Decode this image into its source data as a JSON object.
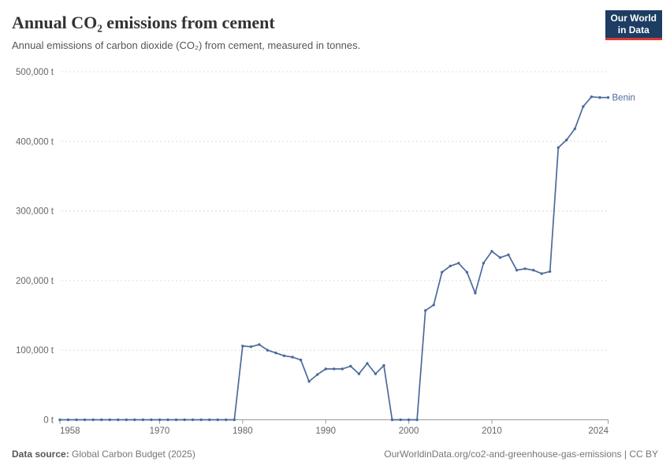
{
  "header": {
    "title": "Annual CO₂ emissions from cement",
    "subtitle": "Annual emissions of carbon dioxide (CO₂) from cement, measured in tonnes."
  },
  "logo": {
    "line1": "Our World",
    "line2": "in Data",
    "bg_color": "#1d3d63",
    "accent_color": "#dc3a34"
  },
  "chart_data": {
    "type": "line",
    "title": "Annual CO₂ emissions from cement",
    "subtitle": "Annual emissions of carbon dioxide (CO₂) from cement, measured in tonnes.",
    "unit": "t",
    "xlabel": "",
    "ylabel": "",
    "grid": true,
    "legend_position": "end-of-line",
    "xlim": [
      1958,
      2024
    ],
    "ylim": [
      0,
      500000
    ],
    "x_ticks": [
      {
        "value": 1958,
        "label": "1958"
      },
      {
        "value": 1970,
        "label": "1970"
      },
      {
        "value": 1980,
        "label": "1980"
      },
      {
        "value": 1990,
        "label": "1990"
      },
      {
        "value": 2000,
        "label": "2000"
      },
      {
        "value": 2010,
        "label": "2010"
      },
      {
        "value": 2024,
        "label": "2024"
      }
    ],
    "y_ticks": [
      {
        "value": 0,
        "label": "0 t"
      },
      {
        "value": 100000,
        "label": "100,000 t"
      },
      {
        "value": 200000,
        "label": "200,000 t"
      },
      {
        "value": 300000,
        "label": "300,000 t"
      },
      {
        "value": 400000,
        "label": "400,000 t"
      },
      {
        "value": 500000,
        "label": "500,000 t"
      }
    ],
    "x": [
      1958,
      1959,
      1960,
      1961,
      1962,
      1963,
      1964,
      1965,
      1966,
      1967,
      1968,
      1969,
      1970,
      1971,
      1972,
      1973,
      1974,
      1975,
      1976,
      1977,
      1978,
      1979,
      1980,
      1981,
      1982,
      1983,
      1984,
      1985,
      1986,
      1987,
      1988,
      1989,
      1990,
      1991,
      1992,
      1993,
      1994,
      1995,
      1996,
      1997,
      1998,
      1999,
      2000,
      2001,
      2002,
      2003,
      2004,
      2005,
      2006,
      2007,
      2008,
      2009,
      2010,
      2011,
      2012,
      2013,
      2014,
      2015,
      2016,
      2017,
      2018,
      2019,
      2020,
      2021,
      2022,
      2023,
      2024
    ],
    "series": [
      {
        "name": "Benin",
        "color": "#4C6A9C",
        "values": [
          0,
          0,
          0,
          0,
          0,
          0,
          0,
          0,
          0,
          0,
          0,
          0,
          0,
          0,
          0,
          0,
          0,
          0,
          0,
          0,
          0,
          0,
          106000,
          105000,
          108000,
          100000,
          96000,
          92000,
          90000,
          86000,
          55000,
          65000,
          73000,
          73000,
          73000,
          77000,
          66000,
          81000,
          66000,
          78000,
          0,
          0,
          0,
          0,
          157000,
          165000,
          212000,
          221000,
          225000,
          212000,
          182000,
          225000,
          242000,
          233000,
          237000,
          215000,
          217000,
          215000,
          210000,
          213000,
          391000,
          402000,
          418000,
          450000,
          464000,
          463000,
          463000
        ]
      }
    ]
  },
  "footer": {
    "source_label": "Data source:",
    "source_value": "Global Carbon Budget (2025)",
    "rights": "OurWorldinData.org/co2-and-greenhouse-gas-emissions | CC BY"
  }
}
